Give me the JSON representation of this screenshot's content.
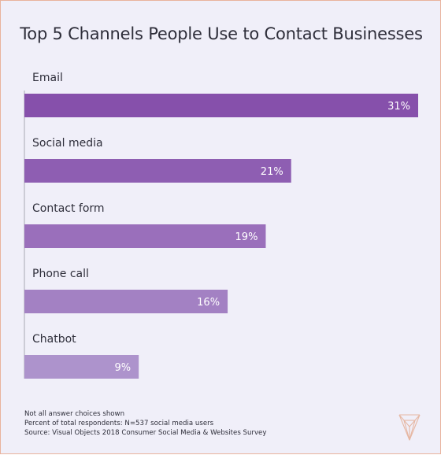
{
  "chart_data": {
    "type": "bar",
    "orientation": "horizontal",
    "title": "Top 5 Channels People Use to Contact Businesses",
    "categories": [
      "Email",
      "Social media",
      "Contact form",
      "Phone call",
      "Chatbot"
    ],
    "values": [
      31,
      21,
      19,
      16,
      9
    ],
    "value_labels": [
      "31%",
      "21%",
      "19%",
      "16%",
      "9%"
    ],
    "xlim": [
      0,
      31
    ],
    "grid": false,
    "legend": "none",
    "bar_colors": [
      "#8650ab",
      "#8e5eb2",
      "#9a6fbb",
      "#a381c3",
      "#ad93cc"
    ]
  },
  "notes": [
    "Not all answer choices shown",
    "Percent of total respondents: N=537 social media users",
    "Source: Visual Objects 2018 Consumer Social Media & Websites Survey"
  ],
  "colors": {
    "background": "#f0eff9",
    "border": "#e9b39c",
    "axis": "#bdbdc7",
    "text": "#2e2e3a",
    "logo": "#e6b7a3"
  },
  "logo_icon": "visual-objects-logo-icon"
}
